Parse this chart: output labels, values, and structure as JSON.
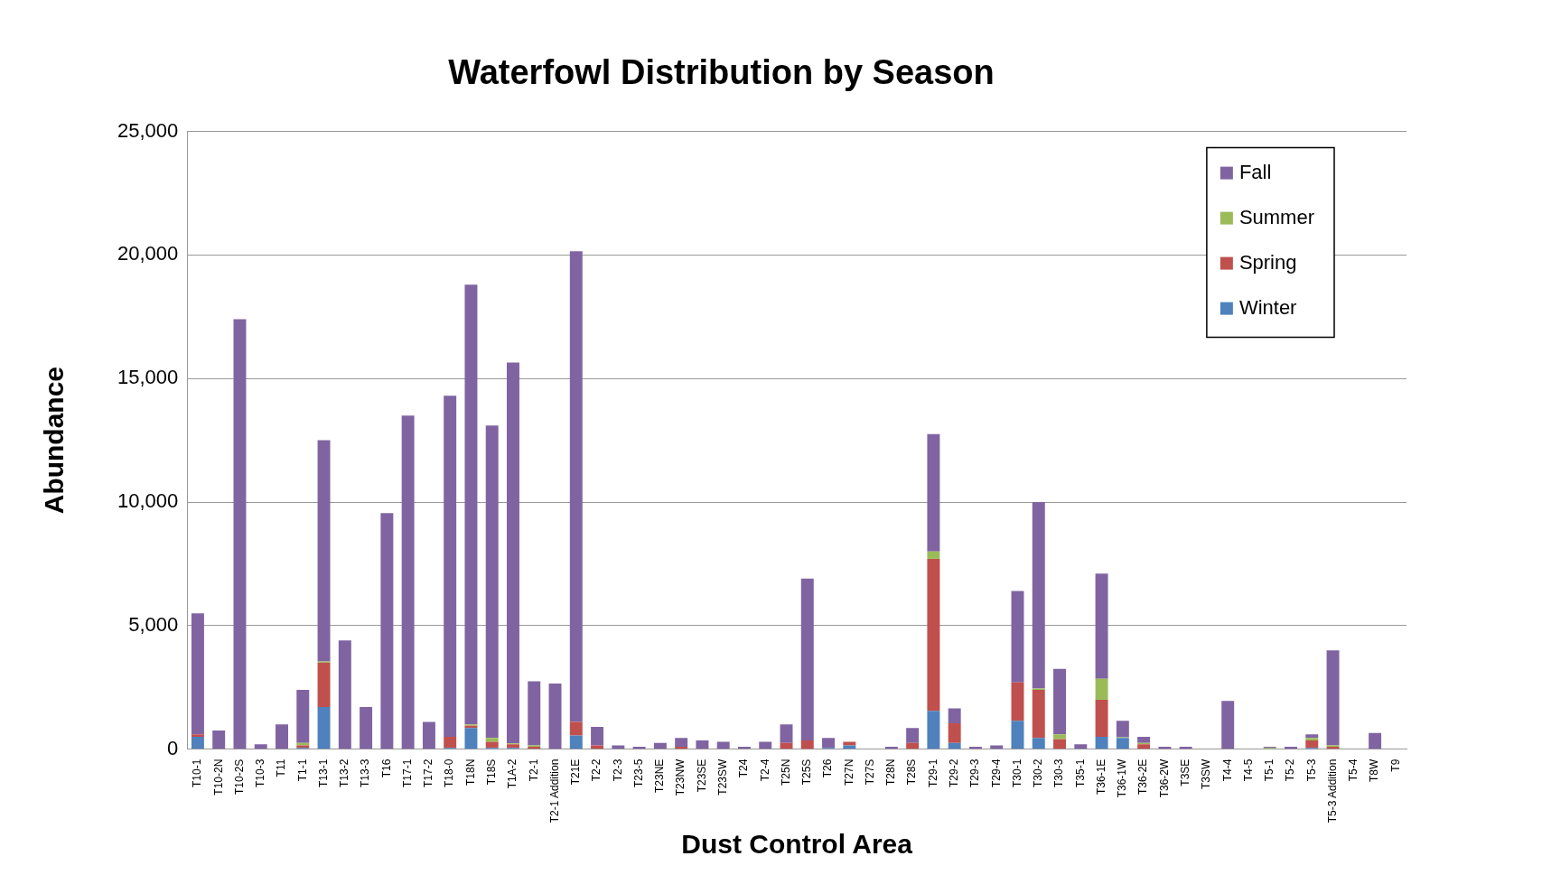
{
  "chart_data": {
    "type": "bar",
    "title": "Waterfowl Distribution by Season",
    "xlabel": "Dust Control Area",
    "ylabel": "Abundance",
    "categories": [
      "T10-1",
      "T10-2N",
      "T10-2S",
      "T10-3",
      "T11",
      "T1-1",
      "T13-1",
      "T13-2",
      "T13-3",
      "T16",
      "T17-1",
      "T17-2",
      "T18-0",
      "T18N",
      "T18S",
      "T1A-2",
      "T2-1",
      "T2-1 Addition",
      "T21E",
      "T2-2",
      "T2-3",
      "T23-5",
      "T23NE",
      "T23NW",
      "T23SE",
      "T23SW",
      "T24",
      "T2-4",
      "T25N",
      "T25S",
      "T26",
      "T27N",
      "T27S",
      "T28N",
      "T28S",
      "T29-1",
      "T29-2",
      "T29-3",
      "T29-4",
      "T30-1",
      "T30-2",
      "T30-3",
      "T35-1",
      "T36-1E",
      "T36-1W",
      "T36-2E",
      "T36-2W",
      "T3SE",
      "T3SW",
      "T4-4",
      "T4-5",
      "T5-1",
      "T5-2",
      "T5-3",
      "T5-3 Addition",
      "T5-4",
      "T8W",
      "T9"
    ],
    "stacked": true,
    "grid": "y",
    "legend": "top right",
    "ylim": [
      0,
      25000
    ],
    "yticks": [
      {
        "value": 0,
        "label": "0"
      },
      {
        "value": 5000,
        "label": "5,000"
      },
      {
        "value": 10000,
        "label": "10,000"
      },
      {
        "value": 15000,
        "label": "15,000"
      },
      {
        "value": 20000,
        "label": "20,000"
      },
      {
        "value": 25000,
        "label": "25,000"
      }
    ],
    "series": [
      {
        "name": "Winter",
        "color": "#4f81bd",
        "values": [
          500,
          0,
          0,
          0,
          0,
          50,
          1700,
          0,
          0,
          0,
          0,
          0,
          50,
          850,
          50,
          50,
          0,
          0,
          550,
          0,
          0,
          0,
          0,
          0,
          0,
          0,
          0,
          0,
          0,
          0,
          50,
          150,
          0,
          0,
          0,
          1550,
          250,
          0,
          0,
          1150,
          450,
          0,
          0,
          500,
          450,
          0,
          0,
          0,
          0,
          0,
          0,
          0,
          0,
          50,
          0,
          0,
          0,
          0
        ]
      },
      {
        "name": "Spring",
        "color": "#c0504d",
        "values": [
          100,
          0,
          0,
          0,
          0,
          100,
          1800,
          0,
          0,
          0,
          0,
          0,
          450,
          100,
          250,
          150,
          100,
          0,
          550,
          150,
          0,
          0,
          0,
          100,
          0,
          0,
          0,
          0,
          250,
          350,
          0,
          150,
          0,
          0,
          250,
          6150,
          800,
          0,
          0,
          1550,
          1950,
          400,
          0,
          1500,
          0,
          200,
          0,
          0,
          0,
          0,
          0,
          0,
          0,
          300,
          100,
          0,
          0,
          0
        ]
      },
      {
        "name": "Summer",
        "color": "#9bbb59",
        "values": [
          0,
          0,
          0,
          0,
          0,
          100,
          50,
          0,
          0,
          0,
          0,
          0,
          0,
          50,
          150,
          30,
          50,
          0,
          0,
          0,
          0,
          0,
          0,
          0,
          0,
          0,
          0,
          0,
          0,
          0,
          0,
          0,
          0,
          0,
          0,
          300,
          0,
          0,
          0,
          0,
          50,
          200,
          0,
          850,
          30,
          50,
          0,
          0,
          0,
          0,
          0,
          50,
          0,
          100,
          50,
          0,
          0,
          0
        ]
      },
      {
        "name": "Fall",
        "color": "#8064a2",
        "values": [
          4900,
          750,
          17400,
          200,
          1000,
          2150,
          8950,
          4400,
          1700,
          9550,
          13500,
          1100,
          13800,
          17800,
          12650,
          15420,
          2600,
          2650,
          19050,
          750,
          150,
          100,
          250,
          350,
          350,
          300,
          100,
          300,
          750,
          6550,
          400,
          0,
          0,
          100,
          600,
          4750,
          600,
          100,
          150,
          3700,
          7550,
          2650,
          200,
          4250,
          670,
          250,
          100,
          100,
          0,
          1950,
          0,
          50,
          100,
          150,
          3850,
          0,
          650,
          0
        ]
      }
    ]
  }
}
